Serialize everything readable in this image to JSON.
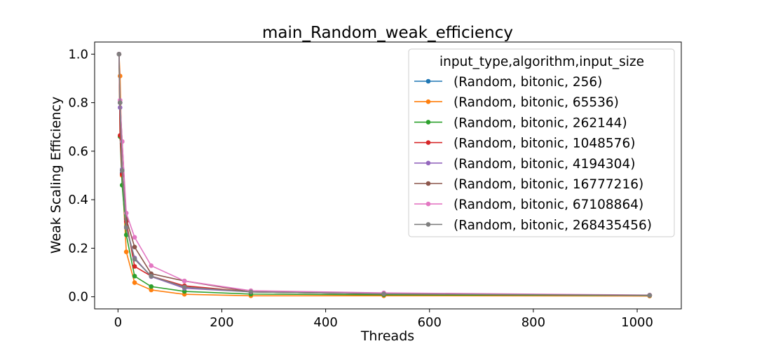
{
  "chart_data": {
    "type": "line",
    "title": "main_Random_weak_efficiency",
    "xlabel": "Threads",
    "ylabel": "Weak Scaling Efficiency",
    "xlim": [
      -45,
      1085
    ],
    "ylim": [
      -0.05,
      1.05
    ],
    "xticks": [
      0,
      200,
      400,
      600,
      800,
      1000
    ],
    "xtick_labels": [
      "0",
      "200",
      "400",
      "600",
      "800",
      "1000"
    ],
    "yticks": [
      0.0,
      0.2,
      0.4,
      0.6,
      0.8,
      1.0
    ],
    "ytick_labels": [
      "0.0",
      "0.2",
      "0.4",
      "0.6",
      "0.8",
      "1.0"
    ],
    "grid": false,
    "legend_title": "input_type,algorithm,input_size",
    "legend_position": "top-right",
    "x": [
      2,
      4,
      8,
      16,
      32,
      64,
      128,
      256,
      512,
      1024
    ],
    "series": [
      {
        "name": "(Random, bitonic, 256)",
        "color": "#1f77b4",
        "values": [
          1.0,
          0.8,
          0.51,
          0.29,
          0.155,
          0.085,
          0.04,
          0.02,
          0.012,
          0.006
        ]
      },
      {
        "name": "(Random, bitonic, 65536)",
        "color": "#ff7f0e",
        "values": [
          1.0,
          0.91,
          0.5,
          0.185,
          0.058,
          0.028,
          0.01,
          0.004,
          0.004,
          0.003
        ]
      },
      {
        "name": "(Random, bitonic, 262144)",
        "color": "#2ca02c",
        "values": [
          1.0,
          0.66,
          0.46,
          0.255,
          0.085,
          0.042,
          0.022,
          0.011,
          0.008,
          0.005
        ]
      },
      {
        "name": "(Random, bitonic, 1048576)",
        "color": "#d62728",
        "values": [
          1.0,
          0.665,
          0.505,
          0.31,
          0.125,
          0.085,
          0.045,
          0.02,
          0.012,
          0.006
        ]
      },
      {
        "name": "(Random, bitonic, 4194304)",
        "color": "#9467bd",
        "values": [
          1.0,
          0.78,
          0.525,
          0.285,
          0.16,
          0.083,
          0.035,
          0.02,
          0.013,
          0.006
        ]
      },
      {
        "name": "(Random, bitonic, 16777216)",
        "color": "#8c564b",
        "values": [
          1.0,
          0.8,
          0.64,
          0.32,
          0.205,
          0.095,
          0.065,
          0.02,
          0.012,
          0.006
        ]
      },
      {
        "name": "(Random, bitonic, 67108864)",
        "color": "#e377c2",
        "values": [
          1.0,
          0.81,
          0.64,
          0.345,
          0.245,
          0.128,
          0.065,
          0.025,
          0.016,
          0.007
        ]
      },
      {
        "name": "(Random, bitonic, 268435456)",
        "color": "#7f7f7f",
        "values": [
          1.0,
          0.8,
          0.52,
          0.285,
          0.155,
          0.085,
          0.04,
          0.02,
          0.012,
          0.006
        ]
      }
    ]
  }
}
